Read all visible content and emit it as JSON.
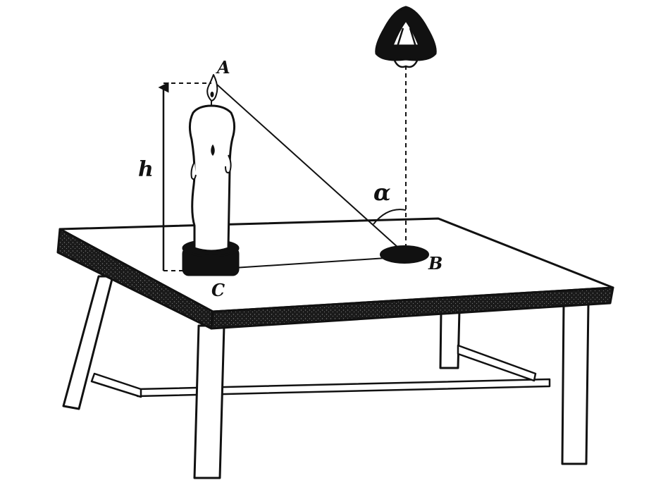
{
  "labels": {
    "point_a": "A",
    "point_b": "B",
    "point_c": "C",
    "height": "h",
    "angle": "α"
  },
  "colors": {
    "ink": "#111111",
    "paper": "#ffffff"
  },
  "icons": [
    "candle-icon",
    "lamp-icon",
    "mirror-icon",
    "table-icon"
  ]
}
